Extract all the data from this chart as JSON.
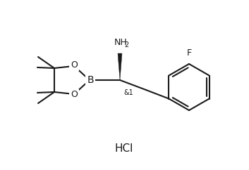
{
  "bg_color": "#ffffff",
  "line_color": "#1a1a1a",
  "line_width": 1.5,
  "fig_width": 3.53,
  "fig_height": 2.42,
  "dpi": 100,
  "hcl_text": "HCl",
  "b_text": "B",
  "o1_text": "O",
  "o2_text": "O",
  "f_text": "F",
  "nh2_text": "NH",
  "stereo_text": "&1"
}
